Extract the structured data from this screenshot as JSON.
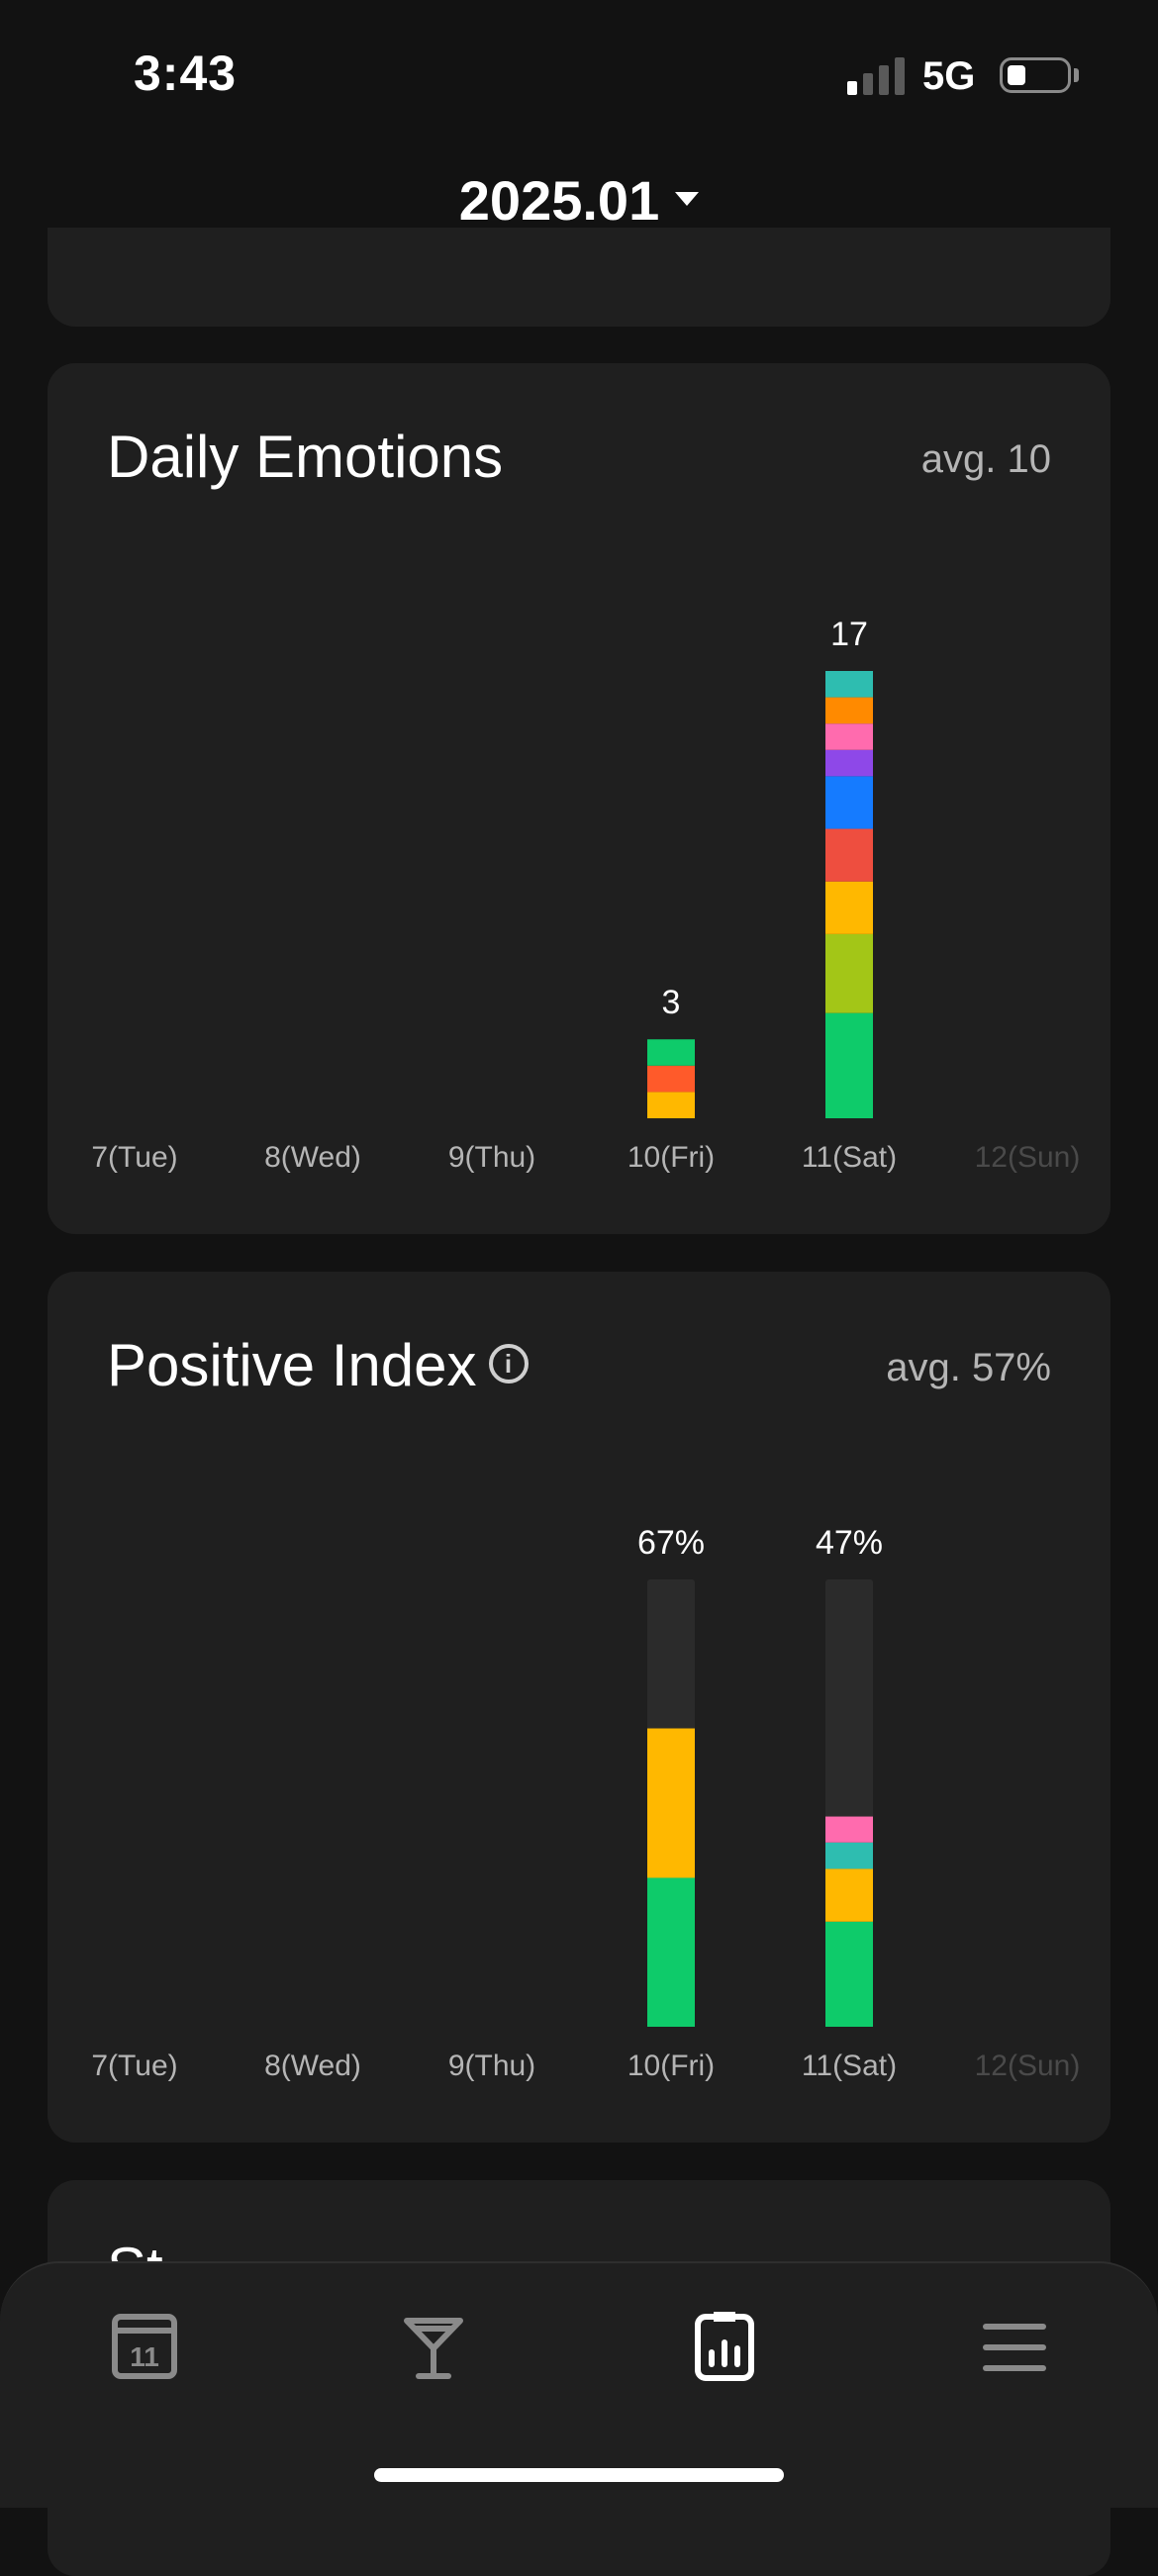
{
  "status_bar": {
    "time": "3:43",
    "network": "5G",
    "battery_level": 0.2
  },
  "header": {
    "month": "2025.01"
  },
  "daily_emotions": {
    "title": "Daily Emotions",
    "avg": "avg. 10",
    "chart_data": {
      "type": "bar",
      "stacked": true,
      "categories": [
        "7(Tue)",
        "8(Wed)",
        "9(Thu)",
        "10(Fri)",
        "11(Sat)",
        "12(Sun)"
      ],
      "totals": [
        0,
        0,
        0,
        3,
        17,
        0
      ],
      "total_labels": [
        "",
        "",
        "",
        "3",
        "17",
        ""
      ],
      "segments": [
        [],
        [],
        [],
        [
          {
            "value": 1,
            "color": "#FFB800"
          },
          {
            "value": 1,
            "color": "#FF5A2A"
          },
          {
            "value": 1,
            "color": "#0ECB6A"
          }
        ],
        [
          {
            "value": 4,
            "color": "#0ECB6A"
          },
          {
            "value": 3,
            "color": "#A3C617"
          },
          {
            "value": 2,
            "color": "#FFB800"
          },
          {
            "value": 2,
            "color": "#EE4E3F"
          },
          {
            "value": 2,
            "color": "#157BFF"
          },
          {
            "value": 1,
            "color": "#8E48E8"
          },
          {
            "value": 1,
            "color": "#FF6BAE"
          },
          {
            "value": 1,
            "color": "#FF8A00"
          },
          {
            "value": 1,
            "color": "#2EBDB0"
          }
        ],
        []
      ],
      "ymax": 17
    }
  },
  "positive_index": {
    "title": "Positive Index",
    "avg": "avg. 57%",
    "chart_data": {
      "type": "bar",
      "stacked": true,
      "categories": [
        "7(Tue)",
        "8(Wed)",
        "9(Thu)",
        "10(Fri)",
        "11(Sat)",
        "12(Sun)"
      ],
      "percent_labels": [
        "",
        "",
        "",
        "67%",
        "47%",
        ""
      ],
      "has_bar": [
        false,
        false,
        false,
        true,
        true,
        false
      ],
      "segments": [
        [],
        [],
        [],
        [
          {
            "value": 33.3,
            "color": "#0ECB6A"
          },
          {
            "value": 33.4,
            "color": "#FFB800"
          }
        ],
        [
          {
            "value": 23.5,
            "color": "#0ECB6A"
          },
          {
            "value": 11.8,
            "color": "#FFB800"
          },
          {
            "value": 5.9,
            "color": "#2EBDB0"
          },
          {
            "value": 5.8,
            "color": "#FF6BAE"
          }
        ],
        []
      ],
      "ymax": 100,
      "track_color": "#2B2B2B"
    }
  },
  "next_card": {
    "title": "St"
  },
  "tab_bar": {
    "tabs": [
      {
        "name": "calendar-icon",
        "label": "11"
      },
      {
        "name": "cocktail-icon"
      },
      {
        "name": "stats-icon",
        "active": true
      },
      {
        "name": "menu-icon"
      }
    ]
  }
}
